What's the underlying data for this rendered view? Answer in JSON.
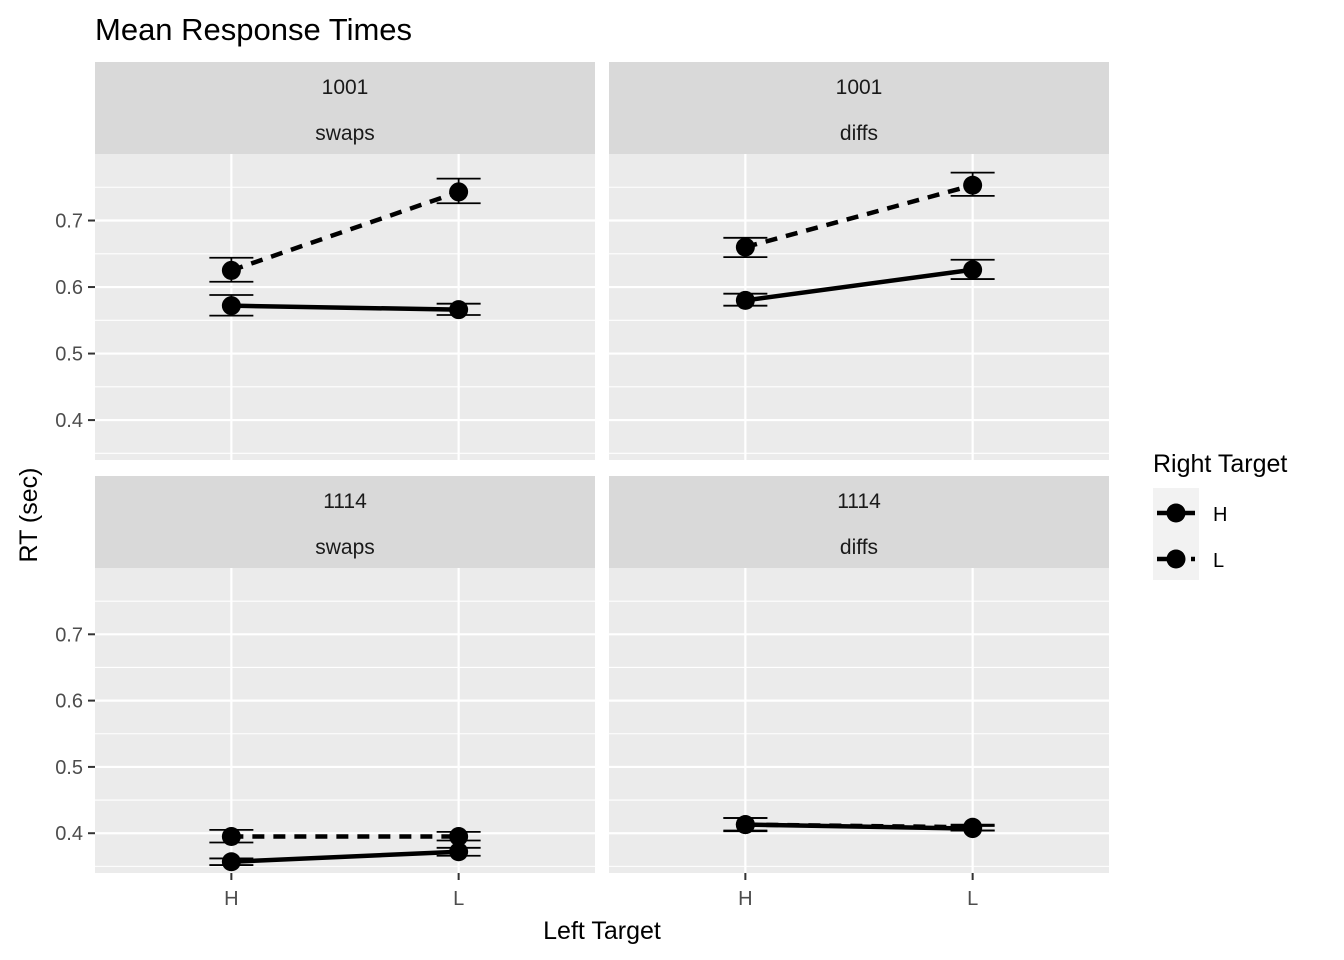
{
  "chart_data": {
    "type": "line",
    "title": "Mean Response Times",
    "xlabel": "Left Target",
    "ylabel": "RT (sec)",
    "categories": [
      "H",
      "L"
    ],
    "yticks": [
      0.4,
      0.5,
      0.6,
      0.7
    ],
    "yticklabels": [
      "0.4",
      "0.5",
      "0.6",
      "0.7"
    ],
    "ylim": [
      0.34,
      0.8
    ],
    "grid": true,
    "legend": {
      "title": "Right Target",
      "placement": "right",
      "entries": [
        {
          "label": "H",
          "dash": "solid"
        },
        {
          "label": "L",
          "dash": "dashed"
        }
      ]
    },
    "panels": [
      {
        "id": "1001-swaps",
        "strip": [
          "1001",
          "swaps"
        ],
        "series": [
          {
            "name": "H",
            "dash": "solid",
            "values": [
              0.572,
              0.566
            ],
            "err_low": [
              0.557,
              0.558
            ],
            "err_high": [
              0.588,
              0.575
            ]
          },
          {
            "name": "L",
            "dash": "dashed",
            "values": [
              0.625,
              0.743
            ],
            "err_low": [
              0.608,
              0.726
            ],
            "err_high": [
              0.644,
              0.763
            ]
          }
        ]
      },
      {
        "id": "1001-diffs",
        "strip": [
          "1001",
          "diffs"
        ],
        "series": [
          {
            "name": "H",
            "dash": "solid",
            "values": [
              0.58,
              0.626
            ],
            "err_low": [
              0.572,
              0.612
            ],
            "err_high": [
              0.59,
              0.641
            ]
          },
          {
            "name": "L",
            "dash": "dashed",
            "values": [
              0.66,
              0.753
            ],
            "err_low": [
              0.645,
              0.737
            ],
            "err_high": [
              0.674,
              0.772
            ]
          }
        ]
      },
      {
        "id": "1114-swaps",
        "strip": [
          "1114",
          "swaps"
        ],
        "series": [
          {
            "name": "H",
            "dash": "solid",
            "values": [
              0.357,
              0.372
            ],
            "err_low": [
              0.352,
              0.366
            ],
            "err_high": [
              0.362,
              0.378
            ]
          },
          {
            "name": "L",
            "dash": "dashed",
            "values": [
              0.395,
              0.395
            ],
            "err_low": [
              0.386,
              0.389
            ],
            "err_high": [
              0.405,
              0.402
            ]
          }
        ]
      },
      {
        "id": "1114-diffs",
        "strip": [
          "1114",
          "diffs"
        ],
        "series": [
          {
            "name": "H",
            "dash": "solid",
            "values": [
              0.413,
              0.407
            ],
            "err_low": [
              0.403,
              0.404
            ],
            "err_high": [
              0.423,
              0.411
            ]
          },
          {
            "name": "L",
            "dash": "dashed",
            "values": [
              0.413,
              0.409
            ],
            "err_low": [
              0.404,
              0.404
            ],
            "err_high": [
              0.423,
              0.413
            ]
          }
        ]
      }
    ]
  }
}
